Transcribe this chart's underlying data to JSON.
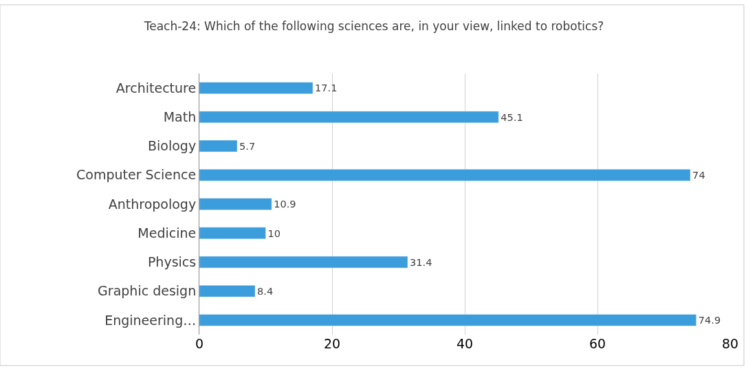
{
  "chart_data": {
    "type": "bar",
    "orientation": "horizontal",
    "title": "Teach-24: Which of the following sciences are, in your view, linked to robotics?",
    "categories": [
      "Architecture",
      "Math",
      "Biology",
      "Computer Science",
      "Anthropology",
      "Medicine",
      "Physics",
      "Graphic design",
      "Engineering…"
    ],
    "values": [
      17.1,
      45.1,
      5.7,
      74,
      10.9,
      10,
      31.4,
      8.4,
      74.9
    ],
    "color": "#3c9ddc",
    "xlim": [
      0,
      80
    ],
    "xticks": [
      0,
      20,
      40,
      60,
      80
    ],
    "grid": "x",
    "data_labels": true
  }
}
